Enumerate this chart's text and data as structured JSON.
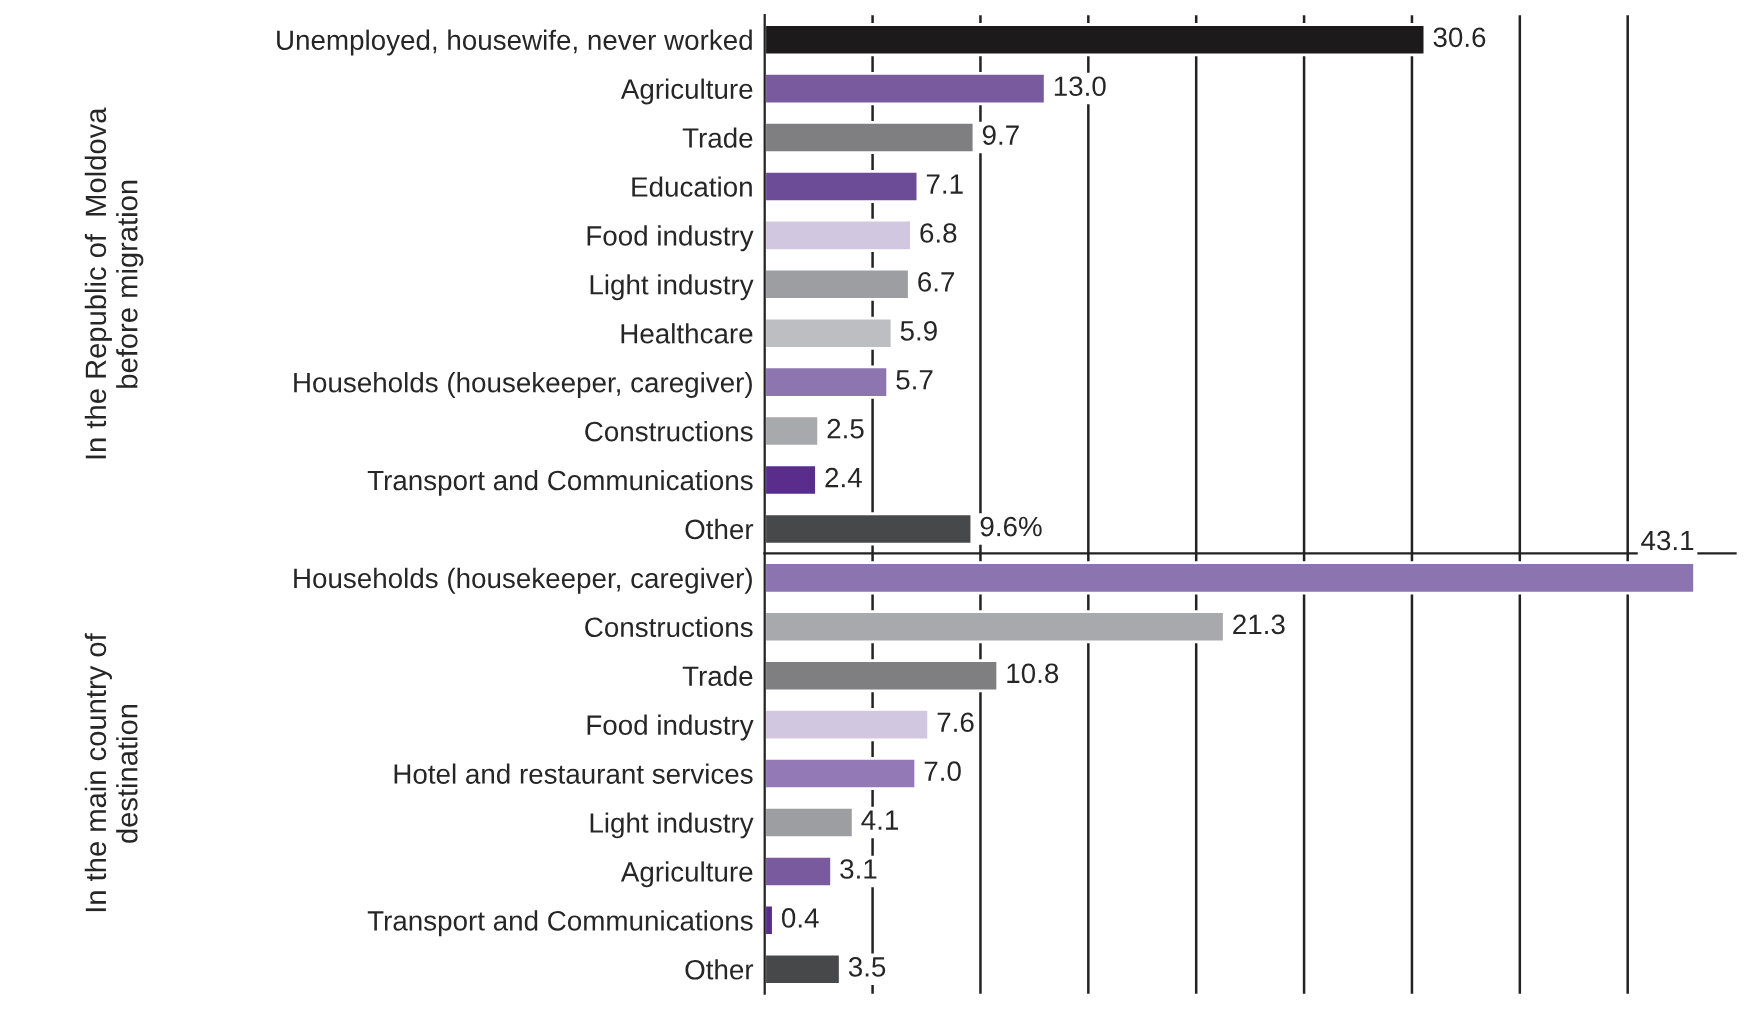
{
  "chart_data": [
    {
      "type": "bar",
      "orientation": "horizontal",
      "ylabel": "In the Republic of  Moldova\nbefore migration",
      "categories": [
        "Unemployed, housewife, never worked",
        "Agriculture",
        "Trade",
        "Education",
        "Food industry",
        "Light industry",
        "Healthcare",
        "Households (housekeeper, caregiver)",
        "Constructions",
        "Transport and Communications",
        "Other"
      ],
      "values": [
        30.6,
        13.0,
        9.7,
        7.1,
        6.8,
        6.7,
        5.9,
        5.7,
        2.5,
        2.4,
        9.6
      ],
      "value_labels": [
        "30.6",
        "13.0",
        "9.7",
        "7.1",
        "6.8",
        "6.7",
        "5.9",
        "5.7",
        "2.5",
        "2.4",
        "9.6%"
      ],
      "colors": [
        "#1c1a1b",
        "#7a5a9e",
        "#7f7f82",
        "#6c4b97",
        "#d2c7e0",
        "#9d9ea1",
        "#bdbec1",
        "#8d75b0",
        "#a8a9ac",
        "#5a2d8c",
        "#47484a"
      ],
      "xlim": [
        0,
        45
      ],
      "xticks": [
        {
          "value": 5,
          "label": null
        },
        {
          "value": 10,
          "label": null
        },
        {
          "value": 15,
          "label": null
        },
        {
          "value": 20,
          "label": null
        },
        {
          "value": 25,
          "label": null
        },
        {
          "value": 30,
          "label": null
        },
        {
          "value": 35,
          "label": null
        },
        {
          "value": 40,
          "label": null
        }
      ],
      "grid": "x",
      "tick_labels": "y"
    },
    {
      "type": "bar",
      "orientation": "horizontal",
      "ylabel": "In the main country of\ndestination",
      "categories": [
        "Households (housekeeper, caregiver)",
        "Constructions",
        "Trade",
        "Food industry",
        "Hotel and restaurant services",
        "Light industry",
        "Agriculture",
        "Transport and Communications",
        "Other"
      ],
      "values": [
        43.1,
        21.3,
        10.8,
        7.6,
        7.0,
        4.1,
        3.1,
        0.4,
        3.5
      ],
      "value_labels": [
        "43.1",
        "21.3",
        "10.8",
        "7.6",
        "7.0",
        "4.1",
        "3.1",
        "0.4",
        "3.5"
      ],
      "colors": [
        "#8b74b0",
        "#a8a9ac",
        "#7f7f82",
        "#d2c7e0",
        "#9379b5",
        "#9d9ea1",
        "#7a5a9e",
        "#5a2d8c",
        "#47484a"
      ],
      "xlim": [
        0,
        45
      ],
      "xticks": [
        {
          "value": 5,
          "label": null
        },
        {
          "value": 10,
          "label": null
        },
        {
          "value": 15,
          "label": null
        },
        {
          "value": 20,
          "label": null
        },
        {
          "value": 25,
          "label": null
        },
        {
          "value": 30,
          "label": null
        },
        {
          "value": 35,
          "label": null
        },
        {
          "value": 40,
          "label": null
        }
      ],
      "grid": "x",
      "tick_labels": "y"
    }
  ]
}
